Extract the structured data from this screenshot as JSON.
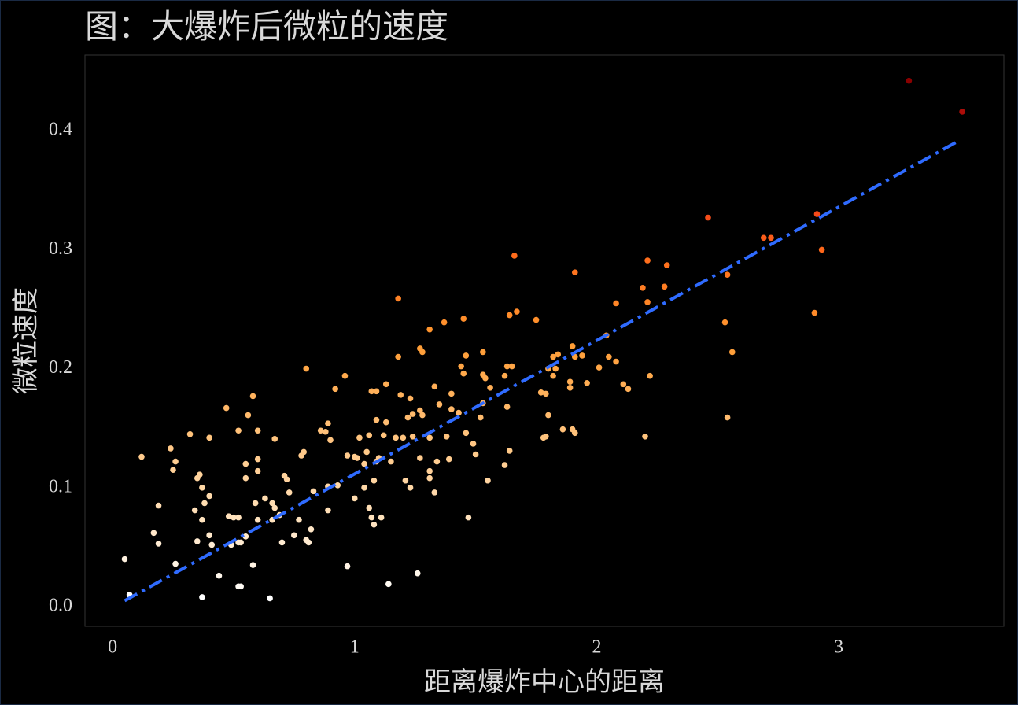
{
  "chart_data": {
    "type": "scatter",
    "title": "图：大爆炸后微粒的速度",
    "xlabel": "距离爆炸中心的距离",
    "ylabel": "微粒速度",
    "xlim": [
      -0.114,
      3.682
    ],
    "ylim": [
      -0.0165,
      0.4636
    ],
    "xticks": [
      0,
      1,
      2,
      3
    ],
    "yticks": [
      {
        "value": 0,
        "label": "0.0"
      },
      0.1,
      0.2,
      0.3,
      0.4
    ],
    "colormap": [
      "#ffffff",
      "#ffe0b8",
      "#ffbf75",
      "#ff9a30",
      "#ff6a1a",
      "#e8231a",
      "#8b0000"
    ],
    "x": [
      0.05,
      0.07,
      0.12,
      0.19,
      0.17,
      0.19,
      0.24,
      0.26,
      0.25,
      0.26,
      0.32,
      0.35,
      0.36,
      0.34,
      0.37,
      0.35,
      0.37,
      0.38,
      0.4,
      0.4,
      0.41,
      0.37,
      0.4,
      0.44,
      0.47,
      0.48,
      0.5,
      0.49,
      0.52,
      0.52,
      0.52,
      0.53,
      0.52,
      0.53,
      0.55,
      0.55,
      0.55,
      0.56,
      0.58,
      0.58,
      0.59,
      0.6,
      0.6,
      0.6,
      0.6,
      0.63,
      0.65,
      0.66,
      0.66,
      0.67,
      0.67,
      0.69,
      0.7,
      0.71,
      0.72,
      0.73,
      0.75,
      0.77,
      0.78,
      0.79,
      0.8,
      0.8,
      0.81,
      0.82,
      0.83,
      0.86,
      0.88,
      0.89,
      0.9,
      0.89,
      0.89,
      0.92,
      0.93,
      0.96,
      0.97,
      0.97,
      1.0,
      1.0,
      1.01,
      1.02,
      1.04,
      1.04,
      1.05,
      1.06,
      1.06,
      1.07,
      1.08,
      1.07,
      1.08,
      1.09,
      1.09,
      1.09,
      1.1,
      1.11,
      1.12,
      1.13,
      1.13,
      1.14,
      1.15,
      1.17,
      1.18,
      1.18,
      1.19,
      1.2,
      1.21,
      1.22,
      1.23,
      1.24,
      1.23,
      1.24,
      1.26,
      1.27,
      1.27,
      1.28,
      1.28,
      1.27,
      1.31,
      1.31,
      1.31,
      1.31,
      1.33,
      1.33,
      1.34,
      1.35,
      1.37,
      1.38,
      1.39,
      1.4,
      1.4,
      1.43,
      1.44,
      1.45,
      1.45,
      1.46,
      1.46,
      1.47,
      1.49,
      1.5,
      1.52,
      1.53,
      1.53,
      1.53,
      1.54,
      1.55,
      1.56,
      1.62,
      1.62,
      1.63,
      1.63,
      1.64,
      1.64,
      1.65,
      1.66,
      1.67,
      1.75,
      1.77,
      1.78,
      1.79,
      1.79,
      1.8,
      1.8,
      1.82,
      1.82,
      1.83,
      1.84,
      1.86,
      1.89,
      1.89,
      1.9,
      1.9,
      1.91,
      1.91,
      1.91,
      1.94,
      1.96,
      2.01,
      2.04,
      2.05,
      2.08,
      2.08,
      2.11,
      2.13,
      2.19,
      2.2,
      2.21,
      2.21,
      2.22,
      2.28,
      2.29,
      2.46,
      2.53,
      2.54,
      2.54,
      2.56,
      2.69,
      2.72,
      2.9,
      2.91,
      2.93,
      3.29,
      3.51
    ],
    "values": [
      0.04,
      0.01,
      0.126,
      0.085,
      0.062,
      0.053,
      0.133,
      0.122,
      0.115,
      0.036,
      0.145,
      0.108,
      0.111,
      0.081,
      0.073,
      0.055,
      0.1,
      0.087,
      0.093,
      0.06,
      0.052,
      0.008,
      0.142,
      0.026,
      0.167,
      0.076,
      0.075,
      0.052,
      0.148,
      0.075,
      0.054,
      0.054,
      0.017,
      0.017,
      0.059,
      0.108,
      0.12,
      0.161,
      0.177,
      0.035,
      0.087,
      0.073,
      0.124,
      0.114,
      0.148,
      0.091,
      0.007,
      0.087,
      0.073,
      0.141,
      0.083,
      0.077,
      0.054,
      0.11,
      0.107,
      0.096,
      0.06,
      0.073,
      0.127,
      0.13,
      0.2,
      0.056,
      0.054,
      0.065,
      0.097,
      0.148,
      0.147,
      0.154,
      0.14,
      0.081,
      0.101,
      0.183,
      0.102,
      0.194,
      0.127,
      0.034,
      0.126,
      0.091,
      0.125,
      0.142,
      0.12,
      0.1,
      0.13,
      0.144,
      0.083,
      0.181,
      0.106,
      0.075,
      0.069,
      0.181,
      0.157,
      0.122,
      0.125,
      0.075,
      0.144,
      0.187,
      0.155,
      0.019,
      0.122,
      0.142,
      0.259,
      0.21,
      0.178,
      0.142,
      0.106,
      0.159,
      0.175,
      0.162,
      0.1,
      0.143,
      0.028,
      0.217,
      0.165,
      0.214,
      0.161,
      0.125,
      0.233,
      0.114,
      0.108,
      0.142,
      0.185,
      0.096,
      0.122,
      0.17,
      0.239,
      0.143,
      0.124,
      0.179,
      0.166,
      0.163,
      0.202,
      0.242,
      0.196,
      0.211,
      0.146,
      0.075,
      0.137,
      0.128,
      0.159,
      0.171,
      0.214,
      0.195,
      0.192,
      0.106,
      0.184,
      0.119,
      0.194,
      0.202,
      0.168,
      0.245,
      0.131,
      0.202,
      0.295,
      0.248,
      0.241,
      0.18,
      0.142,
      0.179,
      0.143,
      0.2,
      0.161,
      0.194,
      0.21,
      0.2,
      0.212,
      0.149,
      0.184,
      0.189,
      0.219,
      0.149,
      0.146,
      0.281,
      0.21,
      0.211,
      0.188,
      0.201,
      0.228,
      0.21,
      0.255,
      0.206,
      0.187,
      0.183,
      0.268,
      0.143,
      0.256,
      0.291,
      0.194,
      0.269,
      0.287,
      0.327,
      0.239,
      0.279,
      0.159,
      0.214,
      0.31,
      0.31,
      0.247,
      0.33,
      0.3,
      0.442,
      0.416
    ],
    "fit": {
      "x": [
        0.05,
        3.5
      ],
      "values": [
        0.005,
        0.392
      ],
      "color": "#2f6bff"
    }
  }
}
